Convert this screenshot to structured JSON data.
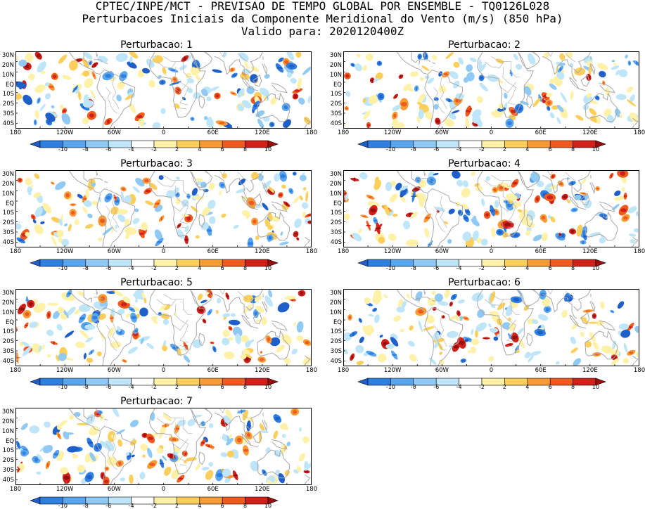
{
  "header": {
    "line1": "CPTEC/INPE/MCT - PREVISAO DE TEMPO GLOBAL POR ENSEMBLE - TQ0126L028",
    "line2": "Perturbacoes Iniciais da Componente Meridional do Vento (m/s) (850 hPa)",
    "line3": "Valido para: 2020120400Z"
  },
  "panels": [
    {
      "title": "Perturbacao: 1",
      "seed": 11
    },
    {
      "title": "Perturbacao: 2",
      "seed": 23
    },
    {
      "title": "Perturbacao: 3",
      "seed": 37
    },
    {
      "title": "Perturbacao: 4",
      "seed": 41
    },
    {
      "title": "Perturbacao: 5",
      "seed": 53
    },
    {
      "title": "Perturbacao: 6",
      "seed": 67
    },
    {
      "title": "Perturbacao: 7",
      "seed": 79
    }
  ],
  "lat_labels": [
    "30N",
    "20N",
    "10N",
    "EQ",
    "10S",
    "20S",
    "30S",
    "40S"
  ],
  "lon_labels": [
    "180",
    "120W",
    "60W",
    "0",
    "60E",
    "120E",
    "180"
  ],
  "colorbar": {
    "labels": [
      "-10",
      "-8",
      "-6",
      "-4",
      "-2",
      "2",
      "4",
      "6",
      "8",
      "10"
    ],
    "colors": [
      "#1f5fc9",
      "#2f7fe0",
      "#5aa6ee",
      "#8fc9f4",
      "#bfe6f8",
      "#ffffff",
      "#fff1a8",
      "#fccf5c",
      "#f99b35",
      "#ef5a1f",
      "#d0201a",
      "#9a0e0e"
    ]
  },
  "map_style": {
    "coast_color": "#a8a8a8",
    "border_color": "#b4b4b4"
  }
}
